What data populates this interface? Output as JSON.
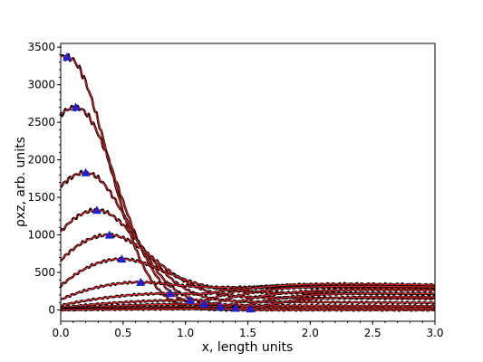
{
  "chart_data": {
    "type": "line",
    "xlabel": "x, length units",
    "ylabel": "ρxz, arb. units",
    "xlim": [
      0.0,
      3.0
    ],
    "ylim": [
      -150,
      3550
    ],
    "x_ticks": [
      "0.0",
      "0.5",
      "1.0",
      "1.5",
      "2.0",
      "2.5",
      "3.0"
    ],
    "y_ticks": [
      "0",
      "500",
      "1000",
      "1500",
      "2000",
      "2500",
      "3000",
      "3500"
    ],
    "grid": false,
    "colors": {
      "data": "#000000",
      "fit": "#d62728",
      "marker": "#1f1fd6"
    },
    "series": [
      {
        "peak_x": 0.05,
        "peak_y": 3370,
        "start_y": 3380,
        "tail_y": 0
      },
      {
        "peak_x": 0.12,
        "peak_y": 2700,
        "start_y": 2600,
        "tail_y": 30
      },
      {
        "peak_x": 0.2,
        "peak_y": 1830,
        "start_y": 1640,
        "tail_y": 60
      },
      {
        "peak_x": 0.29,
        "peak_y": 1330,
        "start_y": 1040,
        "tail_y": 110
      },
      {
        "peak_x": 0.39,
        "peak_y": 1000,
        "start_y": 660,
        "tail_y": 170
      },
      {
        "peak_x": 0.49,
        "peak_y": 680,
        "start_y": 320,
        "tail_y": 240
      },
      {
        "peak_x": 0.64,
        "peak_y": 370,
        "start_y": 140,
        "tail_y": 320
      },
      {
        "peak_x": 0.88,
        "peak_y": 220,
        "start_y": 60,
        "tail_y": 360
      },
      {
        "peak_x": 1.04,
        "peak_y": 130,
        "start_y": 30,
        "tail_y": 380
      },
      {
        "peak_x": 1.15,
        "peak_y": 80,
        "start_y": 15,
        "tail_y": 350
      },
      {
        "peak_x": 1.28,
        "peak_y": 45,
        "start_y": 10,
        "tail_y": 300
      },
      {
        "peak_x": 1.4,
        "peak_y": 25,
        "start_y": 5,
        "tail_y": 250
      },
      {
        "peak_x": 1.52,
        "peak_y": 15,
        "start_y": 0,
        "tail_y": 200
      }
    ]
  }
}
